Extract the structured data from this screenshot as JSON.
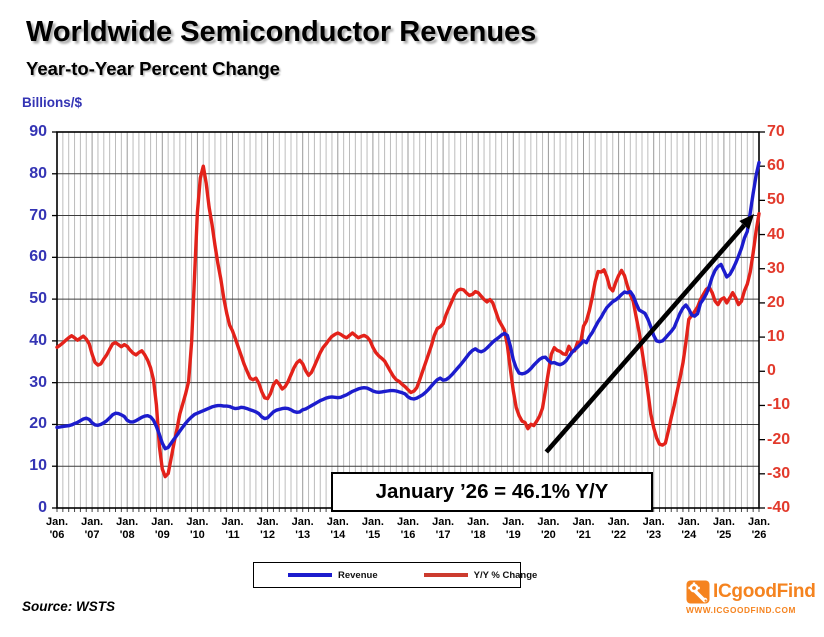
{
  "chart_data": {
    "type": "line",
    "title": "Worldwide Semiconductor Revenues",
    "subtitle": "Year-to-Year Percent Change",
    "left_axis": {
      "title": "Billions/$",
      "min": 0,
      "max": 90,
      "step": 10,
      "color": "#3434b4"
    },
    "right_axis": {
      "min": -40,
      "max": 70,
      "step": 10,
      "color": "#e23a2c"
    },
    "x": {
      "start": "Jan 2006",
      "end": "Jan 2026",
      "frequency": "monthly",
      "month_label": "Jan.",
      "year_labels": [
        "'06",
        "'07",
        "'08",
        "'09",
        "'10",
        "'11",
        "'12",
        "'13",
        "'14",
        "'15",
        "'16",
        "'17",
        "'18",
        "'19",
        "'20",
        "'21",
        "'22",
        "'23",
        "'24",
        "'25",
        "'26"
      ]
    },
    "grid": {
      "minor_color": "#bcbcbc",
      "year_color": "#9a9a9a",
      "major_color": "#3c3c3c",
      "tick_color": "#444444",
      "border_color": "#000000"
    },
    "legend": {
      "position": "bottom",
      "entries": [
        {
          "label": "Revenue",
          "color": "#1c1ccd"
        },
        {
          "label": "Y/Y % Change",
          "color": "#cc3b2e"
        }
      ]
    },
    "series": [
      {
        "name": "Revenue",
        "axis": "left",
        "color": "#1c1ccd",
        "values": [
          19.3,
          19.4,
          19.5,
          19.6,
          19.7,
          19.9,
          20.2,
          20.5,
          20.9,
          21.3,
          21.5,
          21.2,
          20.4,
          19.9,
          19.8,
          20.0,
          20.4,
          20.9,
          21.6,
          22.3,
          22.7,
          22.6,
          22.3,
          21.9,
          21.0,
          20.6,
          20.6,
          20.9,
          21.3,
          21.7,
          22.0,
          22.1,
          21.8,
          21.0,
          19.5,
          17.6,
          15.5,
          14.2,
          14.5,
          15.5,
          16.5,
          17.4,
          18.4,
          19.4,
          20.3,
          21.1,
          21.8,
          22.4,
          22.7,
          23.0,
          23.3,
          23.6,
          23.9,
          24.2,
          24.4,
          24.5,
          24.5,
          24.4,
          24.4,
          24.3,
          24.0,
          23.8,
          23.9,
          24.1,
          24.0,
          23.8,
          23.5,
          23.3,
          23.0,
          22.6,
          21.8,
          21.4,
          21.6,
          22.3,
          23.0,
          23.4,
          23.6,
          23.8,
          23.9,
          23.8,
          23.5,
          23.1,
          22.9,
          23.0,
          23.5,
          23.7,
          24.1,
          24.5,
          24.9,
          25.3,
          25.7,
          26.0,
          26.3,
          26.5,
          26.6,
          26.5,
          26.4,
          26.5,
          26.8,
          27.1,
          27.5,
          27.9,
          28.2,
          28.5,
          28.7,
          28.8,
          28.7,
          28.4,
          28.0,
          27.8,
          27.7,
          27.8,
          27.9,
          28.0,
          28.1,
          28.1,
          28.0,
          27.8,
          27.6,
          27.3,
          26.6,
          26.2,
          26.1,
          26.3,
          26.7,
          27.1,
          27.7,
          28.4,
          29.2,
          30.0,
          30.7,
          31.1,
          30.6,
          30.7,
          31.2,
          31.9,
          32.7,
          33.5,
          34.3,
          35.2,
          36.1,
          37.0,
          37.7,
          38.1,
          37.6,
          37.4,
          37.7,
          38.3,
          39.0,
          39.7,
          40.3,
          40.8,
          41.4,
          41.8,
          41.3,
          38.7,
          35.5,
          33.5,
          32.3,
          32.1,
          32.3,
          32.7,
          33.4,
          34.2,
          34.9,
          35.6,
          36.0,
          36.1,
          35.3,
          34.7,
          34.8,
          34.5,
          34.3,
          34.6,
          35.2,
          36.2,
          37.2,
          37.9,
          38.5,
          39.2,
          40.0,
          39.6,
          41.0,
          42.0,
          43.3,
          44.6,
          45.6,
          46.9,
          48.0,
          48.7,
          49.4,
          49.8,
          50.4,
          51.1,
          51.7,
          51.5,
          51.8,
          50.8,
          49.0,
          47.4,
          47.0,
          46.6,
          45.2,
          43.4,
          41.3,
          40.0,
          39.8,
          40.0,
          40.7,
          41.5,
          42.3,
          43.2,
          44.9,
          46.6,
          47.9,
          48.6,
          47.6,
          46.2,
          45.9,
          46.5,
          49.0,
          50.0,
          51.3,
          53.1,
          55.3,
          56.9,
          57.8,
          58.3,
          56.8,
          55.3,
          55.9,
          57.1,
          58.6,
          60.3,
          62.2,
          64.6,
          66.2,
          70.6,
          75.2,
          79.6,
          82.7
        ]
      },
      {
        "name": "Y/Y % Change",
        "axis": "right",
        "color": "#e3221a",
        "values": [
          7.0,
          7.6,
          8.3,
          9.1,
          9.8,
          10.4,
          9.8,
          9.1,
          9.7,
          10.3,
          9.4,
          8.0,
          5.0,
          2.6,
          1.8,
          2.2,
          3.6,
          4.8,
          6.5,
          8.0,
          8.4,
          7.8,
          7.2,
          7.8,
          7.3,
          6.2,
          5.3,
          4.8,
          5.5,
          6.0,
          4.8,
          3.2,
          1.0,
          -2.5,
          -9.8,
          -22.0,
          -28.6,
          -30.8,
          -29.9,
          -25.5,
          -21.0,
          -17.0,
          -12.5,
          -9.5,
          -6.5,
          -3.0,
          8.5,
          27.5,
          46.5,
          56.5,
          60.0,
          55.0,
          48.0,
          43.0,
          37.0,
          31.5,
          27.0,
          21.5,
          17.0,
          13.5,
          11.8,
          9.5,
          7.0,
          4.5,
          2.0,
          0.0,
          -2.0,
          -2.5,
          -2.0,
          -3.5,
          -6.0,
          -7.8,
          -8.0,
          -6.5,
          -4.0,
          -2.8,
          -3.8,
          -5.2,
          -4.5,
          -3.0,
          -1.0,
          1.0,
          2.5,
          3.2,
          2.2,
          0.2,
          -1.2,
          -0.3,
          1.5,
          3.5,
          5.5,
          7.0,
          8.0,
          9.2,
          10.2,
          10.8,
          11.2,
          10.8,
          10.2,
          9.8,
          10.5,
          11.2,
          10.5,
          9.8,
          10.2,
          10.5,
          10.0,
          9.0,
          7.0,
          5.5,
          4.5,
          3.8,
          3.0,
          1.5,
          0.0,
          -1.5,
          -2.5,
          -3.0,
          -3.8,
          -4.5,
          -5.4,
          -6.2,
          -5.8,
          -4.8,
          -2.5,
          0.0,
          2.5,
          5.0,
          7.5,
          10.5,
          12.5,
          13.0,
          13.9,
          16.5,
          18.5,
          20.5,
          22.5,
          23.7,
          24.0,
          23.8,
          22.9,
          22.2,
          22.5,
          23.3,
          23.0,
          22.0,
          21.0,
          20.3,
          21.0,
          20.0,
          17.5,
          15.0,
          13.5,
          12.0,
          7.5,
          0.5,
          -5.7,
          -10.6,
          -13.0,
          -14.6,
          -15.0,
          -16.8,
          -15.5,
          -15.9,
          -14.6,
          -13.1,
          -10.8,
          -5.5,
          -0.3,
          5.0,
          6.9,
          6.1,
          5.8,
          5.1,
          4.9,
          7.3,
          5.8,
          6.0,
          8.5,
          8.3,
          13.2,
          14.7,
          17.8,
          21.7,
          26.2,
          29.2,
          29.0,
          29.7,
          27.6,
          24.5,
          23.5,
          26.0,
          28.0,
          29.5,
          28.0,
          25.0,
          22.5,
          20.5,
          16.0,
          11.5,
          6.0,
          0.5,
          -6.0,
          -12.5,
          -16.5,
          -19.5,
          -21.3,
          -21.6,
          -21.0,
          -17.5,
          -13.5,
          -10.0,
          -6.0,
          -2.0,
          2.5,
          8.5,
          15.2,
          16.3,
          17.5,
          18.8,
          21.0,
          22.5,
          24.0,
          24.5,
          23.0,
          20.5,
          19.5,
          21.0,
          21.5,
          20.0,
          21.5,
          23.0,
          21.5,
          19.5,
          20.5,
          23.5,
          25.5,
          29.0,
          34.5,
          41.0,
          46.1
        ]
      }
    ],
    "annotation": {
      "text": "January ’26 = 46.1% Y/Y"
    },
    "arrow": {
      "x1": 0.697,
      "y1": 0.851,
      "x2": 0.993,
      "y2": 0.218,
      "color": "#000000"
    }
  },
  "source": "Source: WSTS",
  "logo": {
    "name": "ICgoodFind",
    "url": "WWW.ICGOODFIND.COM",
    "color": "#f5831f"
  }
}
